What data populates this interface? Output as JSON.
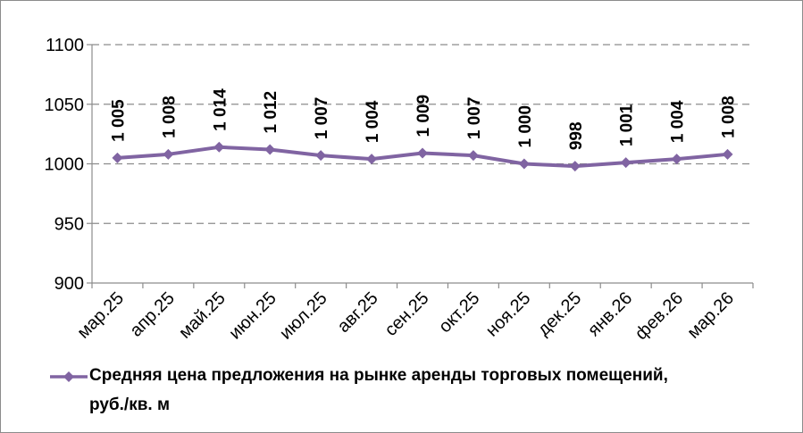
{
  "chart_data": {
    "type": "line",
    "categories": [
      "мар.25",
      "апр.25",
      "май.25",
      "июн.25",
      "июл.25",
      "авг.25",
      "сен.25",
      "окт.25",
      "ноя.25",
      "дек.25",
      "янв.26",
      "фев.26",
      "мар.26"
    ],
    "series": [
      {
        "name": "Средняя цена предложения на рынке аренды торговых помещений, руб./кв. м",
        "values": [
          1005,
          1008,
          1014,
          1012,
          1007,
          1004,
          1009,
          1007,
          1000,
          998,
          1001,
          1004,
          1008
        ],
        "data_labels": [
          "1 005",
          "1 008",
          "1 014",
          "1 012",
          "1 007",
          "1 004",
          "1 009",
          "1 007",
          "1 000",
          "998",
          "1 001",
          "1 004",
          "1 008"
        ],
        "color": "#8064a2"
      }
    ],
    "ylim": [
      900,
      1100
    ],
    "yticks": [
      900,
      950,
      1000,
      1050,
      1100
    ],
    "ytick_labels": [
      "900",
      "950",
      "1000",
      "1050",
      "1100"
    ],
    "grid": "horizontal-dashed",
    "legend": "bottom"
  },
  "legend": {
    "line1": "Средняя цена предложения на рынке аренды торговых помещений,",
    "line2": "руб./кв. м"
  }
}
